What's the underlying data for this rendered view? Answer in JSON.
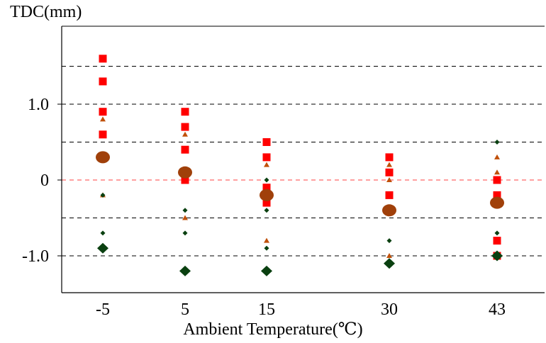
{
  "chart_data": {
    "type": "scatter",
    "title": "",
    "ylabel": "TDC(mm)",
    "xlabel": "Ambient Temperature(℃)",
    "categories": [
      "-5",
      "5",
      "15",
      "30",
      "43"
    ],
    "ylim": [
      -1.5,
      2.0
    ],
    "yticks": [
      {
        "value": 1.0,
        "label": "1.0"
      },
      {
        "value": 0,
        "label": "0"
      },
      {
        "value": -1.0,
        "label": "-1.0"
      }
    ],
    "gridlines": [
      1.5,
      1.0,
      0.5,
      0,
      -0.5,
      -1.0
    ],
    "grid": true,
    "series": [
      {
        "marker": "square",
        "color": "#ff0000",
        "points": [
          [
            "-5",
            1.6
          ],
          [
            "-5",
            1.3
          ],
          [
            "-5",
            0.9
          ],
          [
            "-5",
            0.6
          ],
          [
            "5",
            0.9
          ],
          [
            "5",
            0.7
          ],
          [
            "5",
            0.4
          ],
          [
            "5",
            0.0
          ],
          [
            "15",
            0.5
          ],
          [
            "15",
            0.3
          ],
          [
            "15",
            -0.1
          ],
          [
            "15",
            -0.3
          ],
          [
            "30",
            0.3
          ],
          [
            "30",
            0.1
          ],
          [
            "30",
            -0.2
          ],
          [
            "30",
            -0.4
          ],
          [
            "43",
            0.0
          ],
          [
            "43",
            -0.2
          ],
          [
            "43",
            -0.8
          ],
          [
            "43",
            -1.0
          ]
        ]
      },
      {
        "marker": "triangle",
        "color": "#c0500a",
        "points": [
          [
            "-5",
            0.8
          ],
          [
            "-5",
            -0.2
          ],
          [
            "5",
            0.6
          ],
          [
            "5",
            -0.5
          ],
          [
            "15",
            0.2
          ],
          [
            "15",
            -0.8
          ],
          [
            "30",
            0.2
          ],
          [
            "30",
            0.0
          ],
          [
            "30",
            -1.0
          ],
          [
            "43",
            0.3
          ],
          [
            "43",
            0.1
          ],
          [
            "43",
            -1.0
          ]
        ]
      },
      {
        "marker": "small-diamond",
        "color": "#0a4010",
        "points": [
          [
            "-5",
            -0.2
          ],
          [
            "-5",
            -0.7
          ],
          [
            "5",
            -0.4
          ],
          [
            "5",
            -0.7
          ],
          [
            "15",
            0.0
          ],
          [
            "15",
            -0.4
          ],
          [
            "15",
            -0.9
          ],
          [
            "30",
            -0.8
          ],
          [
            "43",
            0.5
          ],
          [
            "43",
            -0.7
          ]
        ]
      },
      {
        "marker": "circle",
        "color": "#a0400a",
        "points": [
          [
            "-5",
            0.3
          ],
          [
            "5",
            0.1
          ],
          [
            "15",
            -0.2
          ],
          [
            "30",
            -0.4
          ],
          [
            "43",
            -0.3
          ]
        ]
      },
      {
        "marker": "diamond",
        "color": "#0a4010",
        "points": [
          [
            "-5",
            -0.9
          ],
          [
            "5",
            -1.2
          ],
          [
            "15",
            -1.2
          ],
          [
            "30",
            -1.1
          ],
          [
            "43",
            -1.0
          ]
        ]
      }
    ]
  }
}
